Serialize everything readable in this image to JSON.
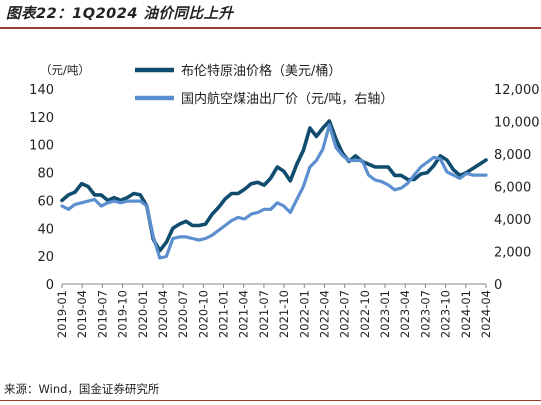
{
  "figure_title": "图表22：1Q2024 油价同比上升",
  "source_note": "来源：Wind，国金证券研究所",
  "colors": {
    "brent": "#0f4c6e",
    "jetfuel": "#5b8fcf",
    "axis": "#888888",
    "rule": "#9a3a2a"
  },
  "chart_data": {
    "type": "line",
    "title": "",
    "unit_left": "（元/吨）",
    "x_tick_labels": [
      "2019-01",
      "2019-04",
      "2019-07",
      "2019-10",
      "2020-01",
      "2020-04",
      "2020-07",
      "2020-10",
      "2021-01",
      "2021-04",
      "2021-07",
      "2021-10",
      "2022-01",
      "2022-04",
      "2022-07",
      "2022-10",
      "2023-01",
      "2023-04",
      "2023-07",
      "2023-10",
      "2024-01",
      "2024-04"
    ],
    "y_left": {
      "min": 0,
      "max": 140,
      "ticks": [
        0,
        20,
        40,
        60,
        80,
        100,
        120,
        140
      ],
      "tick_labels": [
        "0",
        "20",
        "40",
        "60",
        "80",
        "100",
        "120",
        "140"
      ]
    },
    "y_right": {
      "min": 0,
      "max": 12000,
      "ticks": [
        0,
        2000,
        4000,
        6000,
        8000,
        10000,
        12000
      ],
      "tick_labels": [
        "0",
        "2,000",
        "4,000",
        "6,000",
        "8,000",
        "10,000",
        "12,000"
      ]
    },
    "grid": false,
    "legend_position": "top-center",
    "series": [
      {
        "name": "布伦特原油价格（美元/桶）",
        "axis": "left",
        "color": "#0f4c6e",
        "values": [
          60,
          64,
          66,
          72,
          70,
          64,
          64,
          60,
          62,
          60,
          62,
          65,
          64,
          56,
          32,
          24,
          30,
          40,
          43,
          45,
          42,
          42,
          43,
          50,
          55,
          61,
          65,
          65,
          68,
          72,
          73,
          71,
          76,
          84,
          81,
          74,
          86,
          96,
          112,
          106,
          112,
          117,
          104,
          94,
          88,
          92,
          88,
          86,
          84,
          84,
          84,
          78,
          78,
          75,
          75,
          79,
          80,
          85,
          92,
          89,
          82,
          78,
          80,
          83,
          86,
          89
        ]
      },
      {
        "name": "国内航空煤油出厂价（元/吨，右轴）",
        "axis": "right",
        "color": "#5b8fcf",
        "values": [
          4800,
          4600,
          4900,
          5000,
          5100,
          5200,
          4800,
          5000,
          5100,
          5000,
          5100,
          5100,
          5100,
          4800,
          2900,
          1600,
          1700,
          2800,
          2900,
          2900,
          2800,
          2700,
          2800,
          3000,
          3300,
          3600,
          3900,
          4100,
          4000,
          4300,
          4400,
          4600,
          4600,
          5000,
          4800,
          4400,
          5200,
          6000,
          7200,
          7600,
          8300,
          9800,
          8400,
          7900,
          7600,
          7600,
          7600,
          6700,
          6400,
          6300,
          6100,
          5800,
          5900,
          6200,
          6700,
          7200,
          7500,
          7800,
          7700,
          6900,
          6700,
          6500,
          6800,
          6700,
          6700,
          6700
        ]
      }
    ]
  }
}
